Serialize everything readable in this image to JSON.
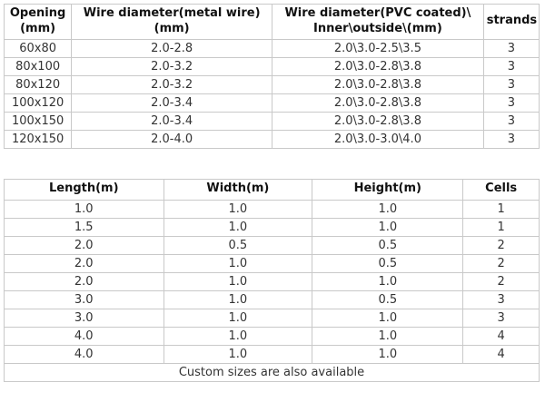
{
  "page": {
    "background": "#ffffff"
  },
  "colors": {
    "border": "#c9c9c9",
    "header_text": "#111111",
    "cell_text": "#333333"
  },
  "tables": [
    {
      "name": "wire-specification-table",
      "headers": [
        "Opening\n(mm)",
        "Wire diameter(metal wire)\n(mm)",
        "Wire diameter(PVC coated)\\\nInner\\outside\\(mm)",
        "strands"
      ],
      "col_widths": [
        "12.6%",
        "37.5%",
        "39.5%",
        "10.4%"
      ],
      "rows": [
        [
          "60x80",
          "2.0-2.8",
          "2.0\\3.0-2.5\\3.5",
          "3"
        ],
        [
          "80x100",
          "2.0-3.2",
          "2.0\\3.0-2.8\\3.8",
          "3"
        ],
        [
          "80x120",
          "2.0-3.2",
          "2.0\\3.0-2.8\\3.8",
          "3"
        ],
        [
          "100x120",
          "2.0-3.4",
          "2.0\\3.0-2.8\\3.8",
          "3"
        ],
        [
          "100x150",
          "2.0-3.4",
          "2.0\\3.0-2.8\\3.8",
          "3"
        ],
        [
          "120x150",
          "2.0-4.0",
          "2.0\\3.0-3.0\\4.0",
          "3"
        ]
      ],
      "footer": null
    },
    {
      "name": "panel-size-table",
      "headers": [
        "Length(m)",
        "Width(m)",
        "Height(m)",
        "Cells"
      ],
      "col_widths": [
        "29.8%",
        "27.8%",
        "28.2%",
        "14.2%"
      ],
      "rows": [
        [
          "1.0",
          "1.0",
          "1.0",
          "1"
        ],
        [
          "1.5",
          "1.0",
          "1.0",
          "1"
        ],
        [
          "2.0",
          "0.5",
          "0.5",
          "2"
        ],
        [
          "2.0",
          "1.0",
          "0.5",
          "2"
        ],
        [
          "2.0",
          "1.0",
          "1.0",
          "2"
        ],
        [
          "3.0",
          "1.0",
          "0.5",
          "3"
        ],
        [
          "3.0",
          "1.0",
          "1.0",
          "3"
        ],
        [
          "4.0",
          "1.0",
          "1.0",
          "4"
        ],
        [
          "4.0",
          "1.0",
          "1.0",
          "4"
        ]
      ],
      "footer": "Custom sizes are also available"
    }
  ]
}
